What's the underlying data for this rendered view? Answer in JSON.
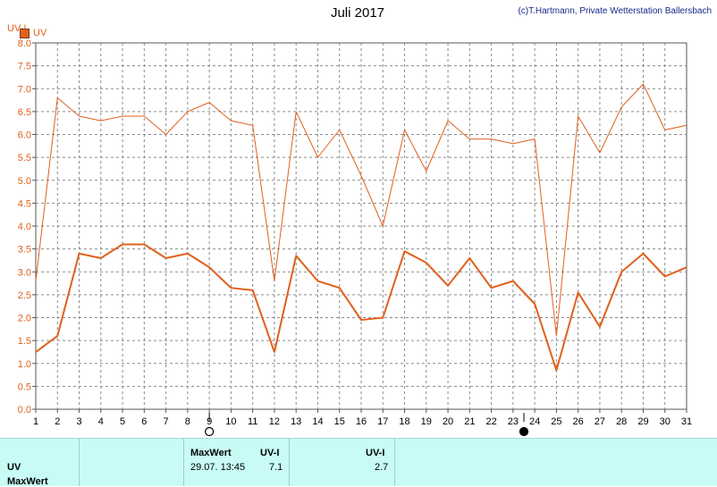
{
  "header": {
    "title": "Juli 2017",
    "credit": "(c)T.Hartmann, Private Wetterstation Ballersbach",
    "y_unit": "UV-I",
    "legend_label": "UV"
  },
  "colors": {
    "series": "#e0601c",
    "grid": "#8a8a8a",
    "axis": "#555555",
    "table_bg": "#c8fbf6"
  },
  "chart_data": {
    "type": "line",
    "x": [
      1,
      2,
      3,
      4,
      5,
      6,
      7,
      8,
      9,
      10,
      11,
      12,
      13,
      14,
      15,
      16,
      17,
      18,
      19,
      20,
      21,
      22,
      23,
      24,
      25,
      26,
      27,
      28,
      29,
      30,
      31
    ],
    "xlim": [
      1,
      31
    ],
    "ylim": [
      0,
      8
    ],
    "ylabel": "UV-I",
    "yticks": [
      "0.0",
      "0.5",
      "1.0",
      "1.5",
      "2.0",
      "2.5",
      "3.0",
      "3.5",
      "4.0",
      "4.5",
      "5.0",
      "5.5",
      "6.0",
      "6.5",
      "7.0",
      "7.5",
      "8.0"
    ],
    "xticks": [
      "1",
      "2",
      "3",
      "4",
      "5",
      "6",
      "7",
      "8",
      "9",
      "10",
      "11",
      "12",
      "13",
      "14",
      "15",
      "16",
      "17",
      "18",
      "19",
      "20",
      "21",
      "22",
      "23",
      "24",
      "25",
      "26",
      "27",
      "28",
      "29",
      "30",
      "31"
    ],
    "grid": true,
    "series": [
      {
        "name": "UV",
        "style": "max",
        "values": [
          2.8,
          6.8,
          6.4,
          6.3,
          6.4,
          6.4,
          6.0,
          6.5,
          6.7,
          6.3,
          6.2,
          2.8,
          6.5,
          5.5,
          6.1,
          5.1,
          4.0,
          6.1,
          5.2,
          6.3,
          5.9,
          5.9,
          5.8,
          5.9,
          1.6,
          6.4,
          5.6,
          6.6,
          7.1,
          6.1,
          6.2
        ]
      },
      {
        "name": "UV",
        "style": "mean",
        "values": [
          1.25,
          1.6,
          3.4,
          3.3,
          3.6,
          3.6,
          3.3,
          3.4,
          3.1,
          2.65,
          2.6,
          1.25,
          3.35,
          2.8,
          2.65,
          1.95,
          2.0,
          3.45,
          3.2,
          2.7,
          3.3,
          2.65,
          2.8,
          2.3,
          0.85,
          2.55,
          1.8,
          3.0,
          3.4,
          2.9,
          3.1
        ]
      }
    ],
    "moon_phases": [
      {
        "day": 9,
        "phase": "full"
      },
      {
        "day": 23.5,
        "phase": "new"
      }
    ]
  },
  "table": {
    "row_labels": [
      "UV",
      "MaxWert"
    ],
    "max_header": "MaxWert",
    "unit_header": "UV-I",
    "max_date": "29.07.  13:45",
    "max_value": "7.1",
    "second_unit_header": "UV-I",
    "second_value": "2.7"
  }
}
